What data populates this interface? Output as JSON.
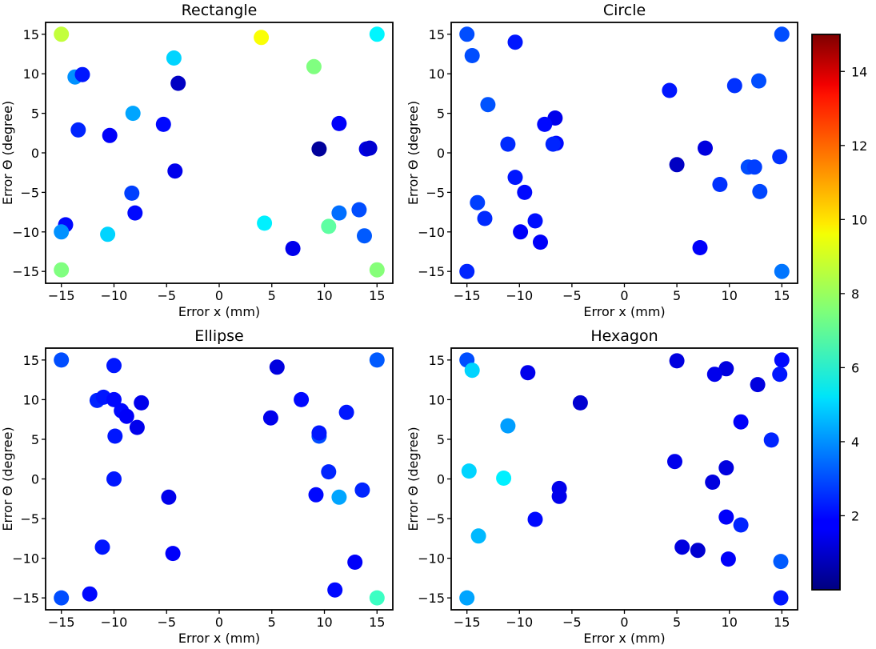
{
  "colorbar": {
    "min": 0,
    "max": 15,
    "ticks": [
      2,
      4,
      6,
      8,
      10,
      12,
      14
    ],
    "tick_labels": [
      "2",
      "4",
      "6",
      "8",
      "10",
      "12",
      "14"
    ],
    "colormap": "jet"
  },
  "chart_data": [
    {
      "type": "scatter",
      "title": "Rectangle",
      "xlabel": "Error x (mm)",
      "ylabel": "Error Θ (degree)",
      "xlim": [
        -16.5,
        16.5
      ],
      "ylim": [
        -16.5,
        16.5
      ],
      "xticks": [
        -15,
        -10,
        -5,
        0,
        5,
        10,
        15
      ],
      "xtick_labels": [
        "−15",
        "−10",
        "−5",
        "0",
        "5",
        "10",
        "15"
      ],
      "yticks": [
        -15,
        -10,
        -5,
        0,
        5,
        10,
        15
      ],
      "ytick_labels": [
        "−15",
        "−10",
        "−5",
        "0",
        "5",
        "10",
        "15"
      ],
      "points": [
        {
          "x": -15,
          "y": 15,
          "c": 8.5
        },
        {
          "x": 4,
          "y": 14.6,
          "c": 9.3
        },
        {
          "x": 15,
          "y": 15,
          "c": 5.5
        },
        {
          "x": -4.3,
          "y": 12,
          "c": 5.0
        },
        {
          "x": 9,
          "y": 10.9,
          "c": 7.5
        },
        {
          "x": -13.7,
          "y": 9.6,
          "c": 4.0
        },
        {
          "x": -13,
          "y": 9.9,
          "c": 2.2
        },
        {
          "x": -3.9,
          "y": 8.8,
          "c": 1.0
        },
        {
          "x": -8.2,
          "y": 5,
          "c": 4.3
        },
        {
          "x": -5.3,
          "y": 3.6,
          "c": 2.0
        },
        {
          "x": -13.4,
          "y": 2.9,
          "c": 2.4
        },
        {
          "x": 11.4,
          "y": 3.7,
          "c": 1.8
        },
        {
          "x": -10.4,
          "y": 2.2,
          "c": 1.8
        },
        {
          "x": 9.5,
          "y": 0.5,
          "c": 0.4
        },
        {
          "x": 14,
          "y": 0.5,
          "c": 1.5
        },
        {
          "x": 14.3,
          "y": 0.6,
          "c": 1.2
        },
        {
          "x": -4.2,
          "y": -2.3,
          "c": 1.6
        },
        {
          "x": -8.3,
          "y": -5.1,
          "c": 2.8
        },
        {
          "x": -8,
          "y": -7.6,
          "c": 2.0
        },
        {
          "x": -14.6,
          "y": -9.1,
          "c": 2.0
        },
        {
          "x": -15,
          "y": -10,
          "c": 4.0
        },
        {
          "x": -10.6,
          "y": -10.3,
          "c": 5.0
        },
        {
          "x": 4.3,
          "y": -8.9,
          "c": 5.4
        },
        {
          "x": 10.4,
          "y": -9.3,
          "c": 7.0
        },
        {
          "x": 11.4,
          "y": -7.6,
          "c": 3.5
        },
        {
          "x": 13.3,
          "y": -7.2,
          "c": 3.0
        },
        {
          "x": 13.8,
          "y": -10.5,
          "c": 3.2
        },
        {
          "x": 7,
          "y": -12.1,
          "c": 1.6
        },
        {
          "x": -15,
          "y": -14.8,
          "c": 7.5
        },
        {
          "x": 15,
          "y": -14.8,
          "c": 7.6
        }
      ]
    },
    {
      "type": "scatter",
      "title": "Circle",
      "xlabel": "Error x (mm)",
      "ylabel": "Error Θ (degree)",
      "xlim": [
        -16.5,
        16.5
      ],
      "ylim": [
        -16.5,
        16.5
      ],
      "xticks": [
        -15,
        -10,
        -5,
        0,
        5,
        10,
        15
      ],
      "xtick_labels": [
        "−15",
        "−10",
        "−5",
        "0",
        "5",
        "10",
        "15"
      ],
      "yticks": [
        -15,
        -10,
        -5,
        0,
        5,
        10,
        15
      ],
      "ytick_labels": [
        "−15",
        "−10",
        "−5",
        "0",
        "5",
        "10",
        "15"
      ],
      "points": [
        {
          "x": -15,
          "y": 15,
          "c": 3.0
        },
        {
          "x": -10.4,
          "y": 14,
          "c": 2.2
        },
        {
          "x": 15,
          "y": 15,
          "c": 3.0
        },
        {
          "x": -14.5,
          "y": 12.3,
          "c": 3.0
        },
        {
          "x": 4.3,
          "y": 7.9,
          "c": 2.2
        },
        {
          "x": 10.5,
          "y": 8.5,
          "c": 2.6
        },
        {
          "x": 12.8,
          "y": 9.1,
          "c": 3.0
        },
        {
          "x": -13,
          "y": 6.1,
          "c": 3.1
        },
        {
          "x": -6.6,
          "y": 4.4,
          "c": 1.6
        },
        {
          "x": -7.6,
          "y": 3.6,
          "c": 2.0
        },
        {
          "x": -6.5,
          "y": 1.2,
          "c": 2.0
        },
        {
          "x": -6.8,
          "y": 1.1,
          "c": 2.4
        },
        {
          "x": -11.1,
          "y": 1.1,
          "c": 2.5
        },
        {
          "x": 7.7,
          "y": 0.6,
          "c": 1.4
        },
        {
          "x": 5,
          "y": -1.5,
          "c": 1.0
        },
        {
          "x": 14.8,
          "y": -0.5,
          "c": 2.6
        },
        {
          "x": 11.8,
          "y": -1.8,
          "c": 3.0
        },
        {
          "x": 12.4,
          "y": -1.8,
          "c": 2.8
        },
        {
          "x": -10.4,
          "y": -3.1,
          "c": 2.2
        },
        {
          "x": -9.5,
          "y": -5,
          "c": 2.0
        },
        {
          "x": 9.1,
          "y": -4,
          "c": 2.6
        },
        {
          "x": 12.9,
          "y": -4.9,
          "c": 2.9
        },
        {
          "x": -14,
          "y": -6.3,
          "c": 2.8
        },
        {
          "x": -13.3,
          "y": -8.3,
          "c": 2.5
        },
        {
          "x": -8.5,
          "y": -8.6,
          "c": 2.1
        },
        {
          "x": -9.9,
          "y": -10,
          "c": 1.8
        },
        {
          "x": -8,
          "y": -11.3,
          "c": 1.8
        },
        {
          "x": 7.2,
          "y": -12,
          "c": 1.8
        },
        {
          "x": -15,
          "y": -15,
          "c": 2.4
        },
        {
          "x": 15,
          "y": -15,
          "c": 3.6
        }
      ]
    },
    {
      "type": "scatter",
      "title": "Ellipse",
      "xlabel": "Error x (mm)",
      "ylabel": "Error Θ (degree)",
      "xlim": [
        -16.5,
        16.5
      ],
      "ylim": [
        -16.5,
        16.5
      ],
      "xticks": [
        -15,
        -10,
        -5,
        0,
        5,
        10,
        15
      ],
      "xtick_labels": [
        "−15",
        "−10",
        "−5",
        "0",
        "5",
        "10",
        "15"
      ],
      "yticks": [
        -15,
        -10,
        -5,
        0,
        5,
        10,
        15
      ],
      "ytick_labels": [
        "−15",
        "−10",
        "−5",
        "0",
        "5",
        "10",
        "15"
      ],
      "points": [
        {
          "x": -15,
          "y": 15,
          "c": 3.0
        },
        {
          "x": -10,
          "y": 14.3,
          "c": 2.2
        },
        {
          "x": 15,
          "y": 15,
          "c": 3.2
        },
        {
          "x": 5.5,
          "y": 14.1,
          "c": 1.4
        },
        {
          "x": -11.6,
          "y": 9.9,
          "c": 2.4
        },
        {
          "x": -11,
          "y": 10.3,
          "c": 2.2
        },
        {
          "x": -10,
          "y": 10,
          "c": 2.0
        },
        {
          "x": -9.3,
          "y": 8.6,
          "c": 2.0
        },
        {
          "x": -8.8,
          "y": 7.9,
          "c": 1.8
        },
        {
          "x": -7.4,
          "y": 9.6,
          "c": 1.6
        },
        {
          "x": -7.8,
          "y": 6.5,
          "c": 1.6
        },
        {
          "x": -9.9,
          "y": 5.4,
          "c": 2.2
        },
        {
          "x": 7.8,
          "y": 10,
          "c": 2.0
        },
        {
          "x": 4.9,
          "y": 7.7,
          "c": 1.6
        },
        {
          "x": 12.1,
          "y": 8.4,
          "c": 2.2
        },
        {
          "x": 9.5,
          "y": 5.4,
          "c": 3.0
        },
        {
          "x": 9.5,
          "y": 5.8,
          "c": 2.2
        },
        {
          "x": -10,
          "y": 0,
          "c": 2.2
        },
        {
          "x": 10.4,
          "y": 0.9,
          "c": 2.4
        },
        {
          "x": -4.8,
          "y": -2.3,
          "c": 1.6
        },
        {
          "x": 9.2,
          "y": -2,
          "c": 2.0
        },
        {
          "x": 11.4,
          "y": -2.3,
          "c": 4.3
        },
        {
          "x": 13.6,
          "y": -1.4,
          "c": 2.4
        },
        {
          "x": -11.1,
          "y": -8.6,
          "c": 2.2
        },
        {
          "x": -4.4,
          "y": -9.4,
          "c": 1.8
        },
        {
          "x": 12.9,
          "y": -10.5,
          "c": 1.8
        },
        {
          "x": 11,
          "y": -14,
          "c": 2.0
        },
        {
          "x": -12.3,
          "y": -14.5,
          "c": 2.0
        },
        {
          "x": -15,
          "y": -15,
          "c": 3.0
        },
        {
          "x": 15,
          "y": -15,
          "c": 6.5
        }
      ]
    },
    {
      "type": "scatter",
      "title": "Hexagon",
      "xlabel": "Error x (mm)",
      "ylabel": "Error Θ (degree)",
      "xlim": [
        -16.5,
        16.5
      ],
      "ylim": [
        -16.5,
        16.5
      ],
      "xticks": [
        -15,
        -10,
        -5,
        0,
        5,
        10,
        15
      ],
      "xtick_labels": [
        "−15",
        "−10",
        "−5",
        "0",
        "5",
        "10",
        "15"
      ],
      "yticks": [
        -15,
        -10,
        -5,
        0,
        5,
        10,
        15
      ],
      "ytick_labels": [
        "−15",
        "−10",
        "−5",
        "0",
        "5",
        "10",
        "15"
      ],
      "points": [
        {
          "x": -15,
          "y": 15,
          "c": 3.0
        },
        {
          "x": -14.5,
          "y": 13.7,
          "c": 5.0
        },
        {
          "x": -9.2,
          "y": 13.4,
          "c": 1.6
        },
        {
          "x": 5,
          "y": 14.9,
          "c": 1.4
        },
        {
          "x": 9.7,
          "y": 13.9,
          "c": 1.4
        },
        {
          "x": 8.6,
          "y": 13.2,
          "c": 1.6
        },
        {
          "x": 15,
          "y": 15,
          "c": 2.0
        },
        {
          "x": 14.8,
          "y": 13.2,
          "c": 2.2
        },
        {
          "x": 12.7,
          "y": 11.9,
          "c": 1.4
        },
        {
          "x": -4.2,
          "y": 9.6,
          "c": 1.2
        },
        {
          "x": -11.1,
          "y": 6.7,
          "c": 4.2
        },
        {
          "x": 11.1,
          "y": 7.2,
          "c": 1.8
        },
        {
          "x": 14,
          "y": 4.9,
          "c": 2.4
        },
        {
          "x": 4.8,
          "y": 2.2,
          "c": 1.6
        },
        {
          "x": 9.7,
          "y": 1.4,
          "c": 1.4
        },
        {
          "x": -14.8,
          "y": 1,
          "c": 5.0
        },
        {
          "x": -11.5,
          "y": 0.1,
          "c": 5.4
        },
        {
          "x": -6.2,
          "y": -1.2,
          "c": 1.6
        },
        {
          "x": 8.4,
          "y": -0.4,
          "c": 1.4
        },
        {
          "x": -6.2,
          "y": -2.2,
          "c": 1.6
        },
        {
          "x": -8.5,
          "y": -5.1,
          "c": 2.0
        },
        {
          "x": 9.7,
          "y": -4.8,
          "c": 1.8
        },
        {
          "x": 11.1,
          "y": -5.8,
          "c": 2.4
        },
        {
          "x": -13.9,
          "y": -7.2,
          "c": 4.6
        },
        {
          "x": 5.5,
          "y": -8.6,
          "c": 1.4
        },
        {
          "x": 7,
          "y": -9,
          "c": 1.2
        },
        {
          "x": 9.9,
          "y": -10.1,
          "c": 1.8
        },
        {
          "x": 14.9,
          "y": -10.4,
          "c": 3.2
        },
        {
          "x": -15,
          "y": -15,
          "c": 4.3
        },
        {
          "x": 14.9,
          "y": -15,
          "c": 2.2
        }
      ]
    }
  ]
}
